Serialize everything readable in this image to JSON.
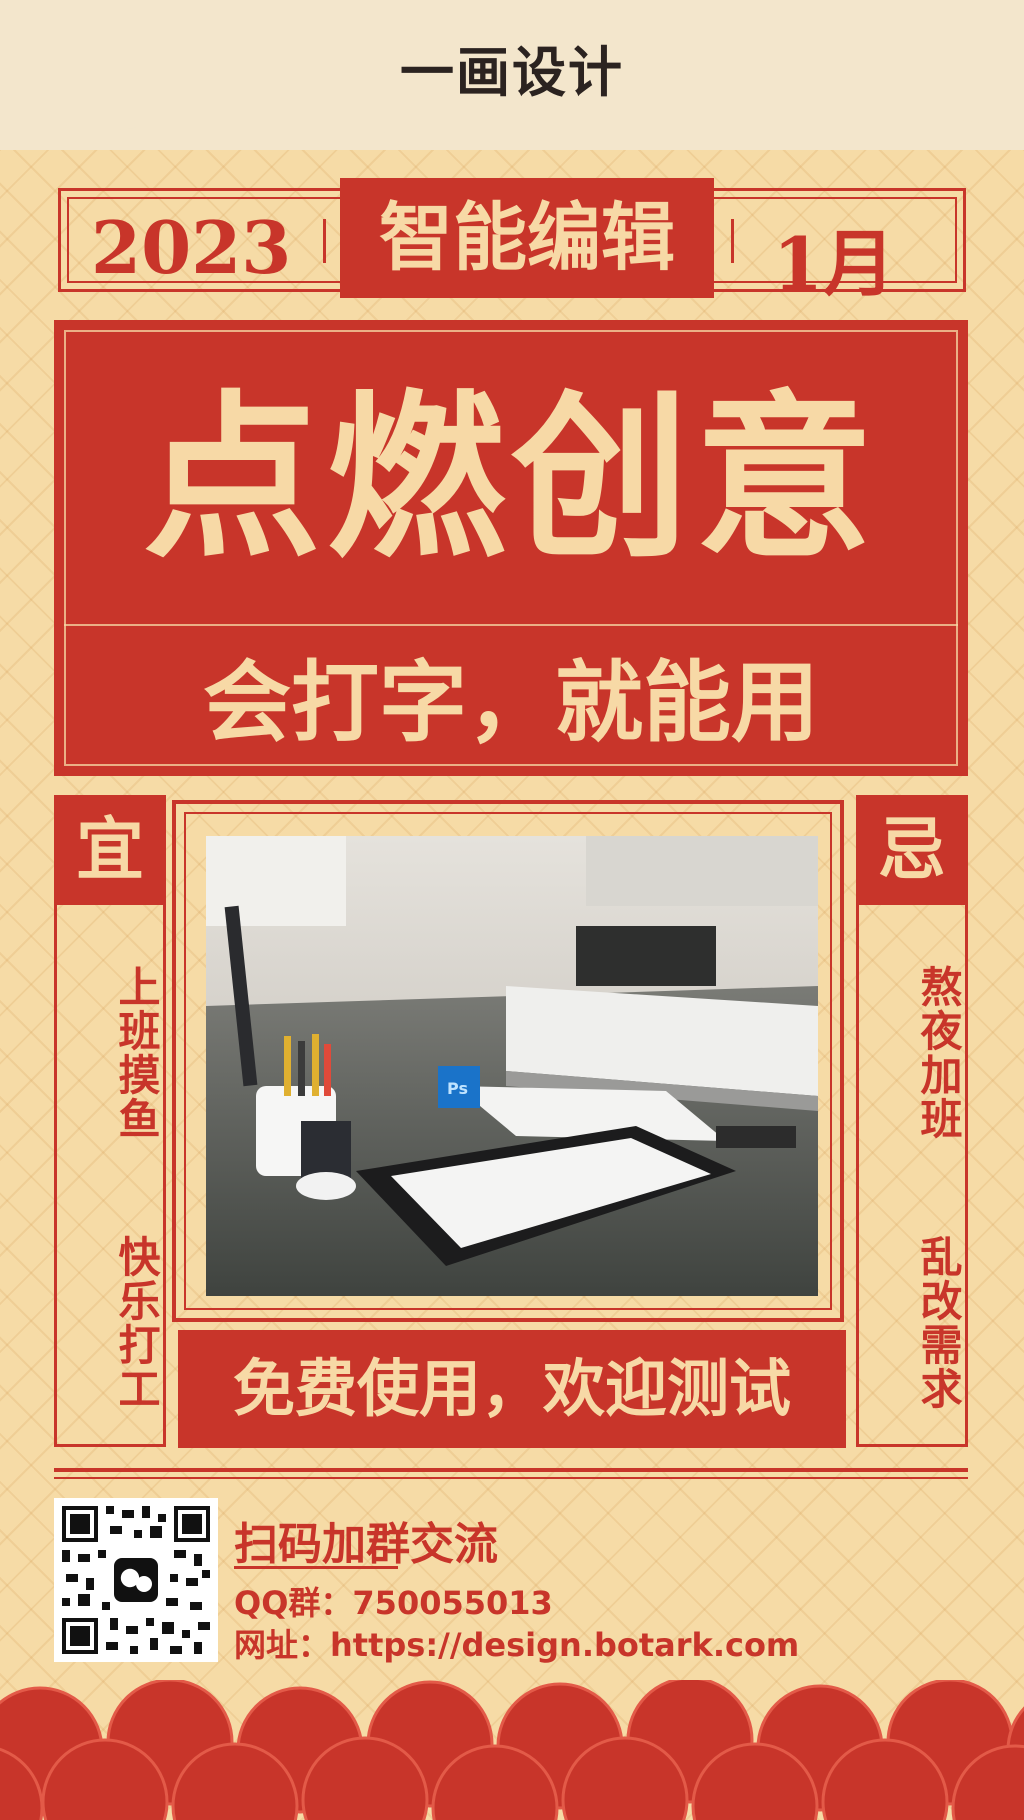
{
  "brand": "一画设计",
  "header": {
    "year": "2023",
    "title": "智能编辑",
    "month": "1月"
  },
  "hero": {
    "title": "点燃创意",
    "subtitle": "会打字，就能用"
  },
  "left_panel": {
    "heading": "宜",
    "line1": "上班摸鱼",
    "line2": "快乐打工"
  },
  "right_panel": {
    "heading": "忌",
    "line1": "熬夜加班",
    "line2": "乱改需求"
  },
  "photo": {
    "ps_label": "Ps"
  },
  "cta": "免费使用，欢迎测试",
  "contact": {
    "title": "扫码加群交流",
    "qq_line": "QQ群：750055013",
    "site_line": "网址：https://design.botark.com"
  },
  "colors": {
    "red": "#c8352a",
    "cream": "#f7d9a6",
    "paper": "#f6dba6"
  }
}
